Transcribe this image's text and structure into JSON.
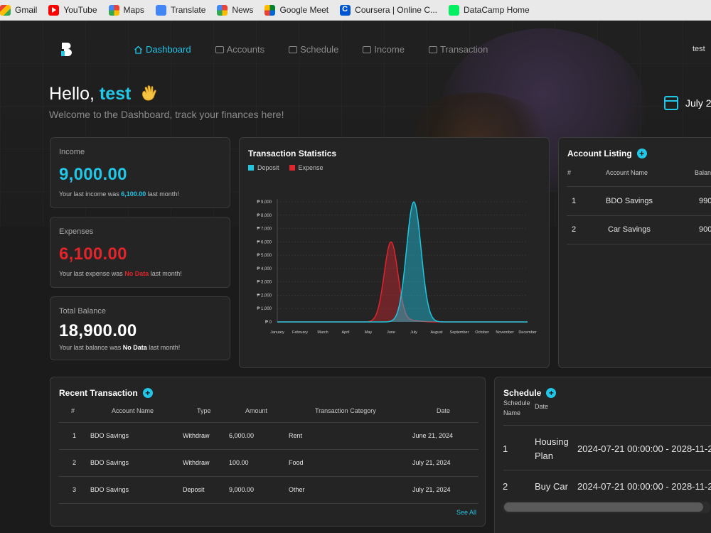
{
  "bookmarks": [
    {
      "label": "Gmail",
      "icon": "gmail-icon"
    },
    {
      "label": "YouTube",
      "icon": "youtube-icon"
    },
    {
      "label": "Maps",
      "icon": "google-icon"
    },
    {
      "label": "Translate",
      "icon": "translate-icon"
    },
    {
      "label": "News",
      "icon": "news-icon"
    },
    {
      "label": "Google Meet",
      "icon": "meet-icon"
    },
    {
      "label": "Coursera | Online C...",
      "icon": "coursera-icon"
    },
    {
      "label": "DataCamp Home",
      "icon": "datacamp-icon"
    }
  ],
  "nav": {
    "items": [
      {
        "label": "Dashboard",
        "icon": "home-icon",
        "active": true
      },
      {
        "label": "Accounts",
        "icon": "card-icon",
        "active": false
      },
      {
        "label": "Schedule",
        "icon": "calendar-icon",
        "active": false
      },
      {
        "label": "Income",
        "icon": "wallet-icon",
        "active": false
      },
      {
        "label": "Transaction",
        "icon": "money-icon",
        "active": false
      }
    ],
    "user": "test"
  },
  "greeting": {
    "hello": "Hello,",
    "name": "test",
    "subtitle": "Welcome to the Dashboard, track your finances here!",
    "date": "July 2"
  },
  "stats": {
    "income": {
      "title": "Income",
      "value": "9,000.00",
      "note_prefix": "Your last income was ",
      "note_value": "6,100.00",
      "note_suffix": " last month!"
    },
    "expenses": {
      "title": "Expenses",
      "value": "6,100.00",
      "note_prefix": "Your last expense was ",
      "note_value": "No Data",
      "note_suffix": " last month!"
    },
    "balance": {
      "title": "Total Balance",
      "value": "18,900.00",
      "note_prefix": "Your last balance was ",
      "note_value": "No Data",
      "note_suffix": " last month!"
    }
  },
  "colors": {
    "accent": "#22c6e6",
    "expense": "#e0252b",
    "deposit": "#1ec6e0"
  },
  "chart_data": {
    "type": "area",
    "title": "Transaction Statistics",
    "categories": [
      "January",
      "February",
      "March",
      "April",
      "May",
      "June",
      "July",
      "August",
      "September",
      "October",
      "November",
      "December"
    ],
    "series": [
      {
        "name": "Deposit",
        "values": [
          0,
          0,
          0,
          0,
          0,
          0,
          9000,
          0,
          0,
          0,
          0,
          0
        ]
      },
      {
        "name": "Expense",
        "values": [
          0,
          0,
          0,
          0,
          0,
          6000,
          100,
          0,
          0,
          0,
          0,
          0
        ]
      }
    ],
    "ylim": [
      0,
      9000
    ],
    "yticks": [
      "₱ 0",
      "₱ 1,000",
      "₱ 2,000",
      "₱ 3,000",
      "₱ 4,000",
      "₱ 5,000",
      "₱ 6,000",
      "₱ 7,000",
      "₱ 8,000",
      "₱ 9,000"
    ],
    "grid": true,
    "legend": "top-left"
  },
  "accounts": {
    "title": "Account Listing",
    "headers": [
      "#",
      "Account Name",
      "Balan"
    ],
    "rows": [
      [
        "1",
        "BDO Savings",
        "990"
      ],
      [
        "2",
        "Car Savings",
        "900"
      ]
    ]
  },
  "recent": {
    "title": "Recent Transaction",
    "headers": [
      "#",
      "Account Name",
      "Type",
      "Amount",
      "Transaction Category",
      "Date"
    ],
    "rows": [
      [
        "1",
        "BDO Savings",
        "Withdraw",
        "6,000.00",
        "Rent",
        "June 21, 2024"
      ],
      [
        "2",
        "BDO Savings",
        "Withdraw",
        "100.00",
        "Food",
        "July 21, 2024"
      ],
      [
        "3",
        "BDO Savings",
        "Deposit",
        "9,000.00",
        "Other",
        "July 21, 2024"
      ]
    ],
    "see_all": "See All"
  },
  "schedule": {
    "title": "Schedule",
    "headers": [
      "Schedule Name",
      "Date"
    ],
    "rows": [
      [
        "1",
        "Housing Plan",
        "2024-07-21 00:00:00 - 2028-11-2"
      ],
      [
        "2",
        "Buy Car",
        "2024-07-21 00:00:00 - 2028-11-2"
      ]
    ]
  }
}
